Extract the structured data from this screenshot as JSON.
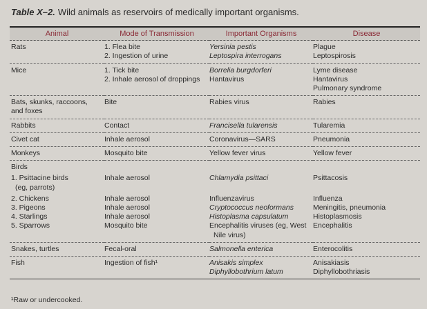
{
  "title": {
    "label": "Table X–2.",
    "text": "Wild animals as reservoirs of medically important organisms."
  },
  "header": {
    "columns": [
      "Animal",
      "Mode of Transmission",
      "Important Organisms",
      "Disease"
    ]
  },
  "rows": [
    {
      "animal": [
        "Rats"
      ],
      "mode": [
        "1. Flea bite",
        "2. Ingestion of urine"
      ],
      "organisms": [
        "Yersinia pestis",
        "Leptospira interrogans"
      ],
      "disease": [
        "Plague",
        "Leptospirosis"
      ]
    },
    {
      "animal": [
        "Mice"
      ],
      "mode": [
        "1. Tick bite",
        "2. Inhale aerosol of droppings"
      ],
      "organisms": [
        "Borrelia burgdorferi",
        "Hantavirus"
      ],
      "disease": [
        "Lyme disease",
        "Hantavirus",
        "Pulmonary syndrome"
      ]
    },
    {
      "animal": [
        "Bats, skunks, raccoons,",
        "and foxes"
      ],
      "mode": [
        "Bite"
      ],
      "organisms": [
        "Rabies virus"
      ],
      "disease": [
        "Rabies"
      ]
    },
    {
      "animal": [
        "Rabbits"
      ],
      "mode": [
        "Contact"
      ],
      "organisms": [
        "Francisella tularensis"
      ],
      "disease": [
        "Tularemia"
      ]
    },
    {
      "animal": [
        "Civet cat"
      ],
      "mode": [
        "Inhale aerosol"
      ],
      "organisms": [
        "Coronavirus—SARS"
      ],
      "disease": [
        "Pneumonia"
      ]
    },
    {
      "animal": [
        "Monkeys"
      ],
      "mode": [
        "Mosquito bite"
      ],
      "organisms": [
        "Yellow fever virus"
      ],
      "disease": [
        "Yellow fever"
      ]
    },
    {
      "animal": [
        "Birds"
      ]
    },
    {
      "animal": [
        "1. Psittacine birds",
        "(eg, parrots)"
      ],
      "mode": [
        "Inhale aerosol"
      ],
      "organisms": [
        "Chlamydia psittaci"
      ],
      "disease": [
        "Psittacosis"
      ]
    },
    {
      "animal": [
        "2. Chickens",
        "3. Pigeons",
        "4. Starlings",
        "5. Sparrows"
      ],
      "mode": [
        "Inhale aerosol",
        "Inhale aerosol",
        "Inhale aerosol",
        "Mosquito bite"
      ],
      "organisms": [
        "Influenzavirus",
        "Cryptococcus neoformans",
        "Histoplasma capsulatum",
        "Encephalitis viruses (eg, West",
        "Nile virus)"
      ],
      "disease": [
        "Influenza",
        "Meningitis, pneumonia",
        "Histoplasmosis",
        "Encephalitis"
      ]
    },
    {
      "animal": [
        "Snakes, turtles"
      ],
      "mode": [
        "Fecal-oral"
      ],
      "organisms": [
        "Salmonella enterica"
      ],
      "disease": [
        "Enterocolitis"
      ]
    },
    {
      "animal": [
        "Fish"
      ],
      "mode": [
        "Ingestion of fish¹"
      ],
      "organisms": [
        "Anisakis simplex",
        "Diphyllobothrium latum"
      ],
      "disease": [
        "Anisakiasis",
        "Diphyllobothriasis"
      ]
    }
  ],
  "footnote": "¹Raw or undercooked."
}
